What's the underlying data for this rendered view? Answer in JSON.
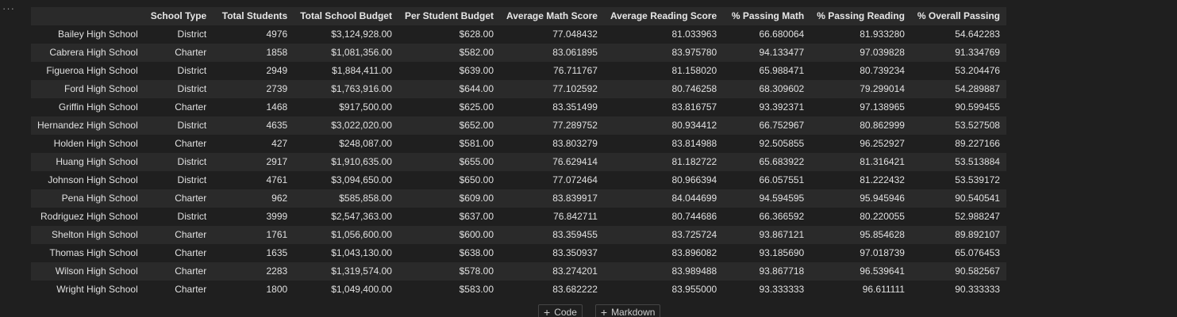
{
  "cell": {
    "more_icon": "ellipsis-icon",
    "more_glyph": "···"
  },
  "table": {
    "columns": [
      "",
      "School Type",
      "Total Students",
      "Total School Budget",
      "Per Student Budget",
      "Average Math Score",
      "Average Reading Score",
      "% Passing Math",
      "% Passing Reading",
      "% Overall Passing"
    ],
    "rows": [
      [
        "Bailey High School",
        "District",
        "4976",
        "$3,124,928.00",
        "$628.00",
        "77.048432",
        "81.033963",
        "66.680064",
        "81.933280",
        "54.642283"
      ],
      [
        "Cabrera High School",
        "Charter",
        "1858",
        "$1,081,356.00",
        "$582.00",
        "83.061895",
        "83.975780",
        "94.133477",
        "97.039828",
        "91.334769"
      ],
      [
        "Figueroa High School",
        "District",
        "2949",
        "$1,884,411.00",
        "$639.00",
        "76.711767",
        "81.158020",
        "65.988471",
        "80.739234",
        "53.204476"
      ],
      [
        "Ford High School",
        "District",
        "2739",
        "$1,763,916.00",
        "$644.00",
        "77.102592",
        "80.746258",
        "68.309602",
        "79.299014",
        "54.289887"
      ],
      [
        "Griffin High School",
        "Charter",
        "1468",
        "$917,500.00",
        "$625.00",
        "83.351499",
        "83.816757",
        "93.392371",
        "97.138965",
        "90.599455"
      ],
      [
        "Hernandez High School",
        "District",
        "4635",
        "$3,022,020.00",
        "$652.00",
        "77.289752",
        "80.934412",
        "66.752967",
        "80.862999",
        "53.527508"
      ],
      [
        "Holden High School",
        "Charter",
        "427",
        "$248,087.00",
        "$581.00",
        "83.803279",
        "83.814988",
        "92.505855",
        "96.252927",
        "89.227166"
      ],
      [
        "Huang High School",
        "District",
        "2917",
        "$1,910,635.00",
        "$655.00",
        "76.629414",
        "81.182722",
        "65.683922",
        "81.316421",
        "53.513884"
      ],
      [
        "Johnson High School",
        "District",
        "4761",
        "$3,094,650.00",
        "$650.00",
        "77.072464",
        "80.966394",
        "66.057551",
        "81.222432",
        "53.539172"
      ],
      [
        "Pena High School",
        "Charter",
        "962",
        "$585,858.00",
        "$609.00",
        "83.839917",
        "84.044699",
        "94.594595",
        "95.945946",
        "90.540541"
      ],
      [
        "Rodriguez High School",
        "District",
        "3999",
        "$2,547,363.00",
        "$637.00",
        "76.842711",
        "80.744686",
        "66.366592",
        "80.220055",
        "52.988247"
      ],
      [
        "Shelton High School",
        "Charter",
        "1761",
        "$1,056,600.00",
        "$600.00",
        "83.359455",
        "83.725724",
        "93.867121",
        "95.854628",
        "89.892107"
      ],
      [
        "Thomas High School",
        "Charter",
        "1635",
        "$1,043,130.00",
        "$638.00",
        "83.350937",
        "83.896082",
        "93.185690",
        "97.018739",
        "65.076453"
      ],
      [
        "Wilson High School",
        "Charter",
        "2283",
        "$1,319,574.00",
        "$578.00",
        "83.274201",
        "83.989488",
        "93.867718",
        "96.539641",
        "90.582567"
      ],
      [
        "Wright High School",
        "Charter",
        "1800",
        "$1,049,400.00",
        "$583.00",
        "83.682222",
        "83.955000",
        "93.333333",
        "96.611111",
        "90.333333"
      ]
    ]
  },
  "add_bar": {
    "code_label": "Code",
    "markdown_label": "Markdown",
    "plus_glyph": "+",
    "plus_icon": "plus-icon"
  }
}
